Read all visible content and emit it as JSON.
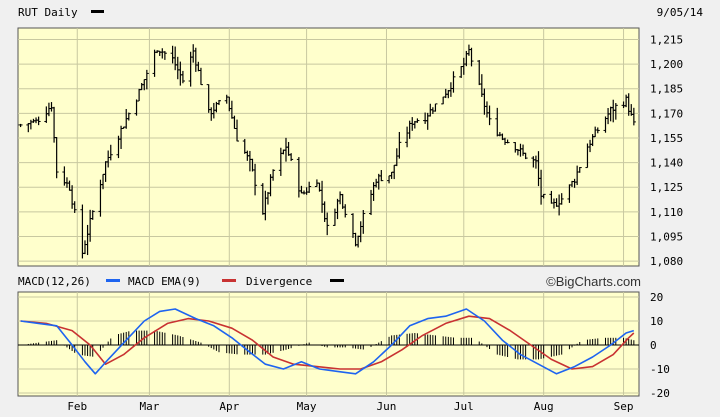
{
  "header": {
    "symbol_label": "RUT Daily",
    "date_label": "9/05/14"
  },
  "macd_header": {
    "macd_label": "MACD(12,26)",
    "ema_label": "MACD EMA(9)",
    "divergence_label": "Divergence",
    "branding": "©BigCharts.com"
  },
  "colors": {
    "panel_bg": "#ffffcc",
    "grid": "#c8c8a0",
    "price_bar": "#000000",
    "macd_line": "#1e64f0",
    "ema_line": "#c83232",
    "divergence": "#000000"
  },
  "chart_data": [
    {
      "type": "ohlc",
      "title": "RUT Daily",
      "y_ticks": [
        1080,
        1095,
        1110,
        1125,
        1140,
        1155,
        1170,
        1185,
        1200,
        1215
      ],
      "ylim": [
        1077,
        1222
      ],
      "x_ticks": [
        "Feb",
        "Mar",
        "Apr",
        "May",
        "Jun",
        "Jul",
        "Aug",
        "Sep"
      ],
      "grid": true,
      "close_path": [
        [
          "2014-01-10",
          1163
        ],
        [
          "2014-01-16",
          1165
        ],
        [
          "2014-01-22",
          1175
        ],
        [
          "2014-01-24",
          1135
        ],
        [
          "2014-01-29",
          1125
        ],
        [
          "2014-02-03",
          1085
        ],
        [
          "2014-02-07",
          1110
        ],
        [
          "2014-02-12",
          1140
        ],
        [
          "2014-02-18",
          1160
        ],
        [
          "2014-02-25",
          1183
        ],
        [
          "2014-03-04",
          1210
        ],
        [
          "2014-03-10",
          1203
        ],
        [
          "2014-03-14",
          1190
        ],
        [
          "2014-03-18",
          1208
        ],
        [
          "2014-03-24",
          1170
        ],
        [
          "2014-03-31",
          1180
        ],
        [
          "2014-04-04",
          1155
        ],
        [
          "2014-04-09",
          1140
        ],
        [
          "2014-04-14",
          1110
        ],
        [
          "2014-04-18",
          1135
        ],
        [
          "2014-04-23",
          1150
        ],
        [
          "2014-04-29",
          1120
        ],
        [
          "2014-05-05",
          1130
        ],
        [
          "2014-05-09",
          1100
        ],
        [
          "2014-05-14",
          1120
        ],
        [
          "2014-05-20",
          1092
        ],
        [
          "2014-05-23",
          1107
        ],
        [
          "2014-05-28",
          1130
        ],
        [
          "2014-06-03",
          1133
        ],
        [
          "2014-06-06",
          1150
        ],
        [
          "2014-06-11",
          1165
        ],
        [
          "2014-06-16",
          1168
        ],
        [
          "2014-06-20",
          1175
        ],
        [
          "2014-06-25",
          1185
        ],
        [
          "2014-07-01",
          1200
        ],
        [
          "2014-07-03",
          1208
        ],
        [
          "2014-07-08",
          1180
        ],
        [
          "2014-07-11",
          1165
        ],
        [
          "2014-07-16",
          1155
        ],
        [
          "2014-07-21",
          1150
        ],
        [
          "2014-07-24",
          1145
        ],
        [
          "2014-07-29",
          1140
        ],
        [
          "2014-07-31",
          1120
        ],
        [
          "2014-08-04",
          1113
        ],
        [
          "2014-08-08",
          1118
        ],
        [
          "2014-08-13",
          1130
        ],
        [
          "2014-08-18",
          1150
        ],
        [
          "2014-08-22",
          1160
        ],
        [
          "2014-08-27",
          1172
        ],
        [
          "2014-09-02",
          1178
        ],
        [
          "2014-09-05",
          1163
        ]
      ]
    },
    {
      "type": "line",
      "title": "MACD(12,26)",
      "y_ticks": [
        20,
        10,
        0,
        -10,
        -20
      ],
      "ylim": [
        -20,
        20
      ],
      "grid": true,
      "series": [
        {
          "name": "MACD(12,26)",
          "points": [
            [
              "2014-01-10",
              10
            ],
            [
              "2014-01-17",
              9
            ],
            [
              "2014-01-24",
              8
            ],
            [
              "2014-01-30",
              0
            ],
            [
              "2014-02-04",
              -7
            ],
            [
              "2014-02-08",
              -12
            ],
            [
              "2014-02-13",
              -6
            ],
            [
              "2014-02-20",
              2
            ],
            [
              "2014-02-27",
              10
            ],
            [
              "2014-03-05",
              14
            ],
            [
              "2014-03-11",
              15
            ],
            [
              "2014-03-19",
              11
            ],
            [
              "2014-03-26",
              8
            ],
            [
              "2014-04-02",
              3
            ],
            [
              "2014-04-09",
              -3
            ],
            [
              "2014-04-15",
              -8
            ],
            [
              "2014-04-22",
              -10
            ],
            [
              "2014-04-29",
              -7
            ],
            [
              "2014-05-06",
              -10
            ],
            [
              "2014-05-13",
              -11
            ],
            [
              "2014-05-20",
              -12
            ],
            [
              "2014-05-27",
              -7
            ],
            [
              "2014-06-03",
              0
            ],
            [
              "2014-06-10",
              8
            ],
            [
              "2014-06-17",
              11
            ],
            [
              "2014-06-24",
              12
            ],
            [
              "2014-07-02",
              15
            ],
            [
              "2014-07-09",
              10
            ],
            [
              "2014-07-16",
              2
            ],
            [
              "2014-07-23",
              -4
            ],
            [
              "2014-07-30",
              -8
            ],
            [
              "2014-08-06",
              -12
            ],
            [
              "2014-08-13",
              -9
            ],
            [
              "2014-08-20",
              -5
            ],
            [
              "2014-08-27",
              0
            ],
            [
              "2014-09-02",
              5
            ],
            [
              "2014-09-05",
              6
            ]
          ]
        },
        {
          "name": "MACD EMA(9)",
          "points": [
            [
              "2014-01-10",
              10
            ],
            [
              "2014-01-20",
              9
            ],
            [
              "2014-01-30",
              6
            ],
            [
              "2014-02-06",
              0
            ],
            [
              "2014-02-12",
              -8
            ],
            [
              "2014-02-19",
              -4
            ],
            [
              "2014-02-27",
              3
            ],
            [
              "2014-03-08",
              9
            ],
            [
              "2014-03-16",
              11
            ],
            [
              "2014-03-24",
              10
            ],
            [
              "2014-04-02",
              7
            ],
            [
              "2014-04-10",
              2
            ],
            [
              "2014-04-18",
              -5
            ],
            [
              "2014-04-26",
              -8
            ],
            [
              "2014-05-05",
              -9
            ],
            [
              "2014-05-14",
              -10
            ],
            [
              "2014-05-22",
              -10
            ],
            [
              "2014-05-30",
              -7
            ],
            [
              "2014-06-07",
              -2
            ],
            [
              "2014-06-15",
              4
            ],
            [
              "2014-06-24",
              9
            ],
            [
              "2014-07-03",
              12
            ],
            [
              "2014-07-11",
              11
            ],
            [
              "2014-07-19",
              6
            ],
            [
              "2014-07-27",
              0
            ],
            [
              "2014-08-04",
              -6
            ],
            [
              "2014-08-12",
              -10
            ],
            [
              "2014-08-20",
              -9
            ],
            [
              "2014-08-28",
              -4
            ],
            [
              "2014-09-03",
              3
            ],
            [
              "2014-09-05",
              5
            ]
          ]
        },
        {
          "name": "Divergence",
          "type": "bar",
          "points": [
            [
              "2014-01-10",
              0
            ],
            [
              "2014-01-24",
              2
            ],
            [
              "2014-02-01",
              -4
            ],
            [
              "2014-02-08",
              -5
            ],
            [
              "2014-02-15",
              4
            ],
            [
              "2014-02-22",
              6
            ],
            [
              "2014-03-03",
              6
            ],
            [
              "2014-03-12",
              4
            ],
            [
              "2014-03-21",
              1
            ],
            [
              "2014-03-28",
              -3
            ],
            [
              "2014-04-05",
              -4
            ],
            [
              "2014-04-15",
              -4
            ],
            [
              "2014-04-23",
              -2
            ],
            [
              "2014-05-02",
              1
            ],
            [
              "2014-05-09",
              -1
            ],
            [
              "2014-05-16",
              -1
            ],
            [
              "2014-05-24",
              -2
            ],
            [
              "2014-06-03",
              4
            ],
            [
              "2014-06-12",
              5
            ],
            [
              "2014-06-20",
              4
            ],
            [
              "2014-06-28",
              3
            ],
            [
              "2014-07-05",
              3
            ],
            [
              "2014-07-14",
              -4
            ],
            [
              "2014-07-22",
              -6
            ],
            [
              "2014-07-30",
              -6
            ],
            [
              "2014-08-08",
              -4
            ],
            [
              "2014-08-16",
              2
            ],
            [
              "2014-08-24",
              3
            ],
            [
              "2014-09-01",
              3
            ],
            [
              "2014-09-05",
              2
            ]
          ]
        }
      ]
    }
  ]
}
